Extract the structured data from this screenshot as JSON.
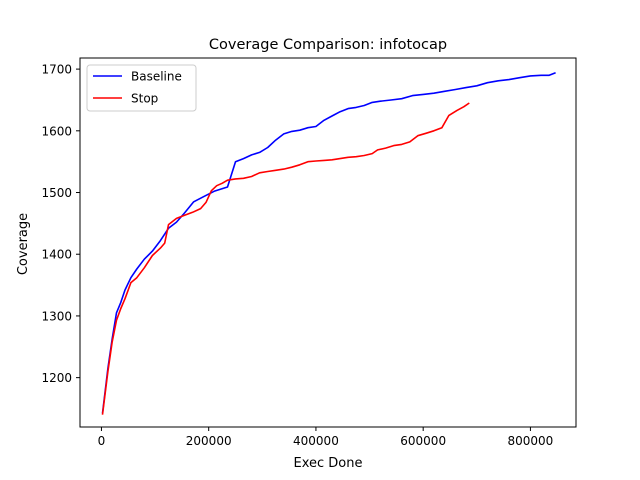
{
  "chart_data": {
    "type": "line",
    "title": "Coverage Comparison: infotocap",
    "xlabel": "Exec Done",
    "ylabel": "Coverage",
    "xlim": [
      -40000,
      885000
    ],
    "ylim": [
      1120,
      1718
    ],
    "xticks": [
      0,
      200000,
      400000,
      600000,
      800000
    ],
    "xtick_labels": [
      "0",
      "200000",
      "400000",
      "600000",
      "800000"
    ],
    "yticks": [
      1200,
      1300,
      1400,
      1500,
      1600,
      1700
    ],
    "ytick_labels": [
      "1200",
      "1300",
      "1400",
      "1500",
      "1600",
      "1700"
    ],
    "grid": false,
    "legend": "upper-left",
    "series": [
      {
        "name": "Baseline",
        "color": "#0000ff",
        "points": [
          [
            2000,
            1142
          ],
          [
            12000,
            1215
          ],
          [
            20000,
            1263
          ],
          [
            28000,
            1305
          ],
          [
            36000,
            1322
          ],
          [
            44000,
            1342
          ],
          [
            55000,
            1362
          ],
          [
            66000,
            1376
          ],
          [
            80000,
            1392
          ],
          [
            95000,
            1405
          ],
          [
            110000,
            1422
          ],
          [
            125000,
            1442
          ],
          [
            140000,
            1452
          ],
          [
            155000,
            1467
          ],
          [
            172000,
            1485
          ],
          [
            190000,
            1493
          ],
          [
            210000,
            1502
          ],
          [
            235000,
            1509
          ],
          [
            250000,
            1550
          ],
          [
            265000,
            1555
          ],
          [
            280000,
            1561
          ],
          [
            295000,
            1565
          ],
          [
            310000,
            1573
          ],
          [
            325000,
            1585
          ],
          [
            340000,
            1595
          ],
          [
            355000,
            1599
          ],
          [
            370000,
            1601
          ],
          [
            385000,
            1605
          ],
          [
            400000,
            1607
          ],
          [
            415000,
            1617
          ],
          [
            430000,
            1624
          ],
          [
            445000,
            1631
          ],
          [
            460000,
            1636
          ],
          [
            475000,
            1638
          ],
          [
            490000,
            1641
          ],
          [
            505000,
            1646
          ],
          [
            520000,
            1648
          ],
          [
            540000,
            1650
          ],
          [
            560000,
            1652
          ],
          [
            580000,
            1657
          ],
          [
            600000,
            1659
          ],
          [
            620000,
            1661
          ],
          [
            640000,
            1664
          ],
          [
            660000,
            1667
          ],
          [
            680000,
            1670
          ],
          [
            700000,
            1673
          ],
          [
            720000,
            1678
          ],
          [
            740000,
            1681
          ],
          [
            760000,
            1683
          ],
          [
            780000,
            1686
          ],
          [
            800000,
            1689
          ],
          [
            820000,
            1690
          ],
          [
            835000,
            1690
          ],
          [
            847000,
            1694
          ]
        ]
      },
      {
        "name": "Stop",
        "color": "#ff0000",
        "points": [
          [
            2000,
            1140
          ],
          [
            12000,
            1210
          ],
          [
            20000,
            1258
          ],
          [
            28000,
            1293
          ],
          [
            36000,
            1312
          ],
          [
            44000,
            1328
          ],
          [
            55000,
            1354
          ],
          [
            66000,
            1362
          ],
          [
            80000,
            1378
          ],
          [
            95000,
            1398
          ],
          [
            110000,
            1410
          ],
          [
            118000,
            1418
          ],
          [
            125000,
            1448
          ],
          [
            140000,
            1458
          ],
          [
            155000,
            1463
          ],
          [
            170000,
            1468
          ],
          [
            185000,
            1474
          ],
          [
            195000,
            1484
          ],
          [
            205000,
            1503
          ],
          [
            215000,
            1511
          ],
          [
            225000,
            1515
          ],
          [
            235000,
            1520
          ],
          [
            250000,
            1522
          ],
          [
            265000,
            1523
          ],
          [
            280000,
            1526
          ],
          [
            295000,
            1532
          ],
          [
            310000,
            1534
          ],
          [
            325000,
            1536
          ],
          [
            340000,
            1538
          ],
          [
            355000,
            1541
          ],
          [
            370000,
            1545
          ],
          [
            385000,
            1550
          ],
          [
            400000,
            1551
          ],
          [
            415000,
            1552
          ],
          [
            430000,
            1553
          ],
          [
            445000,
            1555
          ],
          [
            460000,
            1557
          ],
          [
            475000,
            1558
          ],
          [
            490000,
            1560
          ],
          [
            505000,
            1563
          ],
          [
            515000,
            1569
          ],
          [
            530000,
            1572
          ],
          [
            545000,
            1576
          ],
          [
            560000,
            1578
          ],
          [
            575000,
            1582
          ],
          [
            590000,
            1592
          ],
          [
            605000,
            1596
          ],
          [
            620000,
            1600
          ],
          [
            635000,
            1605
          ],
          [
            648000,
            1625
          ],
          [
            663000,
            1633
          ],
          [
            676000,
            1639
          ],
          [
            686000,
            1645
          ]
        ]
      }
    ]
  }
}
